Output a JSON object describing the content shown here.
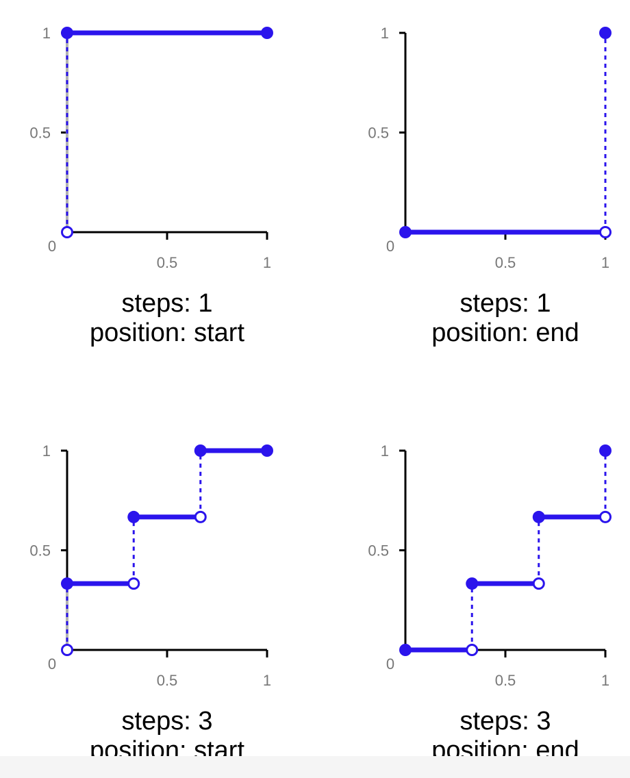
{
  "colors": {
    "series": "#2b14ec",
    "axis": "#000000",
    "start_connector": "#b3b3b3",
    "tick_text": "#777777",
    "caption_text": "#000000"
  },
  "chart_data": [
    {
      "type": "line",
      "steps": 1,
      "position": "start",
      "caption": [
        "steps: 1",
        "position: start"
      ],
      "xlim": [
        0,
        1
      ],
      "ylim": [
        0,
        1
      ],
      "x_ticks": [
        "0.5",
        "1"
      ],
      "y_ticks": [
        "1",
        "0.5"
      ],
      "origin_label": "0",
      "segments": [
        {
          "x": [
            0,
            1
          ],
          "y": 1
        }
      ],
      "jumps": [
        {
          "x": 0,
          "from": 0,
          "to": 1
        }
      ],
      "filled_points": [
        [
          0,
          1
        ],
        [
          1,
          1
        ]
      ],
      "open_points": [
        [
          0,
          0
        ]
      ]
    },
    {
      "type": "line",
      "steps": 1,
      "position": "end",
      "caption": [
        "steps: 1",
        "position: end"
      ],
      "xlim": [
        0,
        1
      ],
      "ylim": [
        0,
        1
      ],
      "x_ticks": [
        "0.5",
        "1"
      ],
      "y_ticks": [
        "1",
        "0.5"
      ],
      "origin_label": "0",
      "segments": [
        {
          "x": [
            0,
            1
          ],
          "y": 0
        }
      ],
      "jumps": [
        {
          "x": 1,
          "from": 0,
          "to": 1
        }
      ],
      "filled_points": [
        [
          0,
          0
        ],
        [
          1,
          1
        ]
      ],
      "open_points": [
        [
          1,
          0
        ]
      ]
    },
    {
      "type": "line",
      "steps": 3,
      "position": "start",
      "caption": [
        "steps: 3",
        "position: start"
      ],
      "xlim": [
        0,
        1
      ],
      "ylim": [
        0,
        1
      ],
      "x_ticks": [
        "0.5",
        "1"
      ],
      "y_ticks": [
        "1",
        "0.5"
      ],
      "origin_label": "0",
      "segments": [
        {
          "x": [
            0,
            0.333
          ],
          "y": 0.333
        },
        {
          "x": [
            0.333,
            0.667
          ],
          "y": 0.667
        },
        {
          "x": [
            0.667,
            1
          ],
          "y": 1
        }
      ],
      "jumps": [
        {
          "x": 0,
          "from": 0,
          "to": 0.333
        },
        {
          "x": 0.333,
          "from": 0.333,
          "to": 0.667
        },
        {
          "x": 0.667,
          "from": 0.667,
          "to": 1
        }
      ],
      "filled_points": [
        [
          0,
          0.333
        ],
        [
          0.333,
          0.667
        ],
        [
          0.667,
          1
        ],
        [
          1,
          1
        ]
      ],
      "open_points": [
        [
          0,
          0
        ],
        [
          0.333,
          0.333
        ],
        [
          0.667,
          0.667
        ]
      ]
    },
    {
      "type": "line",
      "steps": 3,
      "position": "end",
      "caption": [
        "steps: 3",
        "position: end"
      ],
      "xlim": [
        0,
        1
      ],
      "ylim": [
        0,
        1
      ],
      "x_ticks": [
        "0.5",
        "1"
      ],
      "y_ticks": [
        "1",
        "0.5"
      ],
      "origin_label": "0",
      "segments": [
        {
          "x": [
            0,
            0.333
          ],
          "y": 0
        },
        {
          "x": [
            0.333,
            0.667
          ],
          "y": 0.333
        },
        {
          "x": [
            0.667,
            1
          ],
          "y": 0.667
        }
      ],
      "jumps": [
        {
          "x": 0.333,
          "from": 0,
          "to": 0.333
        },
        {
          "x": 0.667,
          "from": 0.333,
          "to": 0.667
        },
        {
          "x": 1,
          "from": 0.667,
          "to": 1
        }
      ],
      "filled_points": [
        [
          0,
          0
        ],
        [
          0.333,
          0.333
        ],
        [
          0.667,
          0.667
        ],
        [
          1,
          1
        ]
      ],
      "open_points": [
        [
          0.333,
          0
        ],
        [
          0.667,
          0.333
        ],
        [
          1,
          0.667
        ]
      ]
    }
  ]
}
